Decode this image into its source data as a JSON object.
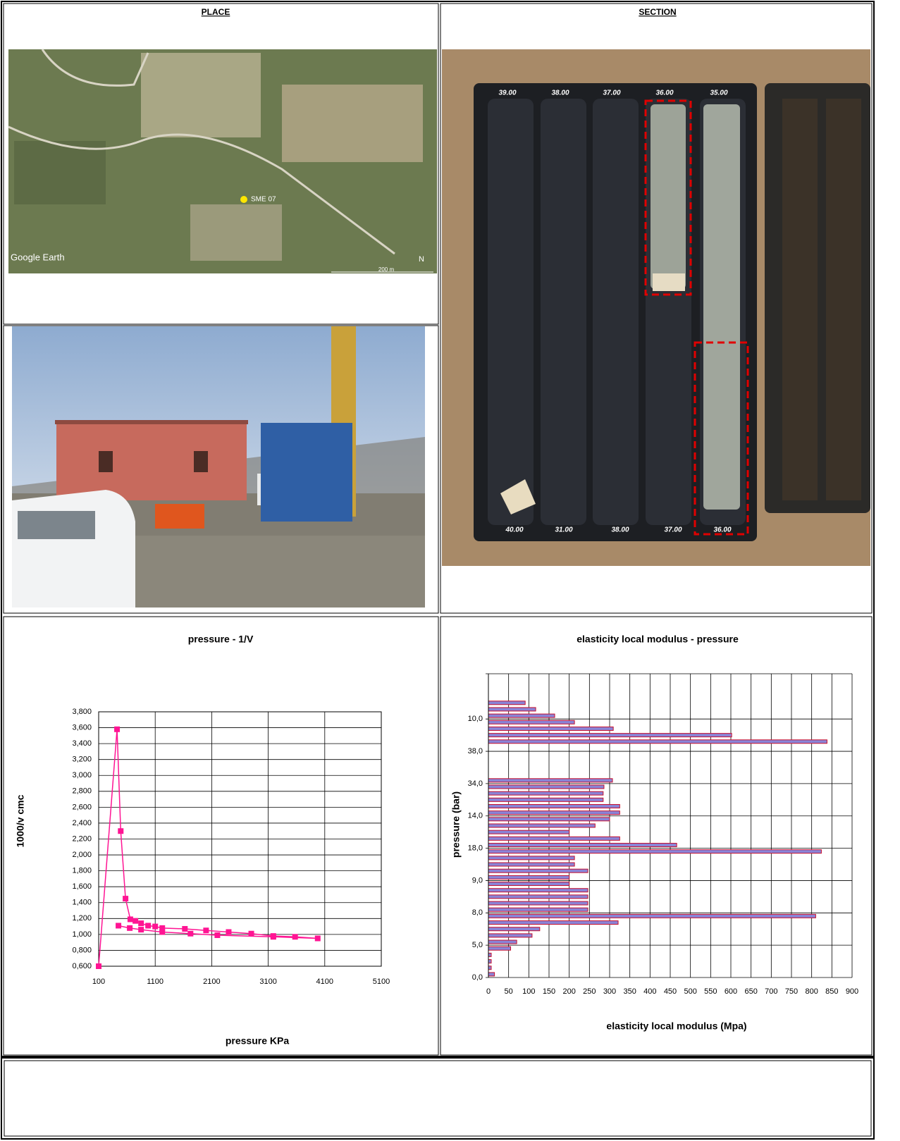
{
  "header": {
    "place": "PLACE",
    "section": "SECTION"
  },
  "map": {
    "brand": "Google Earth",
    "marker": "SME 07",
    "scale": "200 m",
    "north": "N"
  },
  "core_box": {
    "top_labels": [
      "39.00",
      "38.00",
      "37.00",
      "36.00",
      "35.00"
    ],
    "bottom_labels": [
      "40.00",
      "31.00",
      "38.00",
      "37.00",
      "36.00"
    ]
  },
  "chart_data": [
    {
      "type": "line",
      "title": "pressure - 1/V",
      "xlabel": "pressure KPa",
      "ylabel": "1000/v cmc",
      "color": "#ff1493",
      "marker": "square",
      "grid": true,
      "x": [
        100,
        425,
        490,
        575,
        660,
        750,
        850,
        975,
        1100,
        1225,
        1625,
        2000,
        2400,
        2800,
        3190,
        3575,
        3975,
        3190,
        2200,
        1725,
        1225,
        850,
        650,
        450
      ],
      "values": [
        0.6,
        3.58,
        2.3,
        1.45,
        1.19,
        1.17,
        1.14,
        1.11,
        1.1,
        1.08,
        1.07,
        1.05,
        1.03,
        1.01,
        0.98,
        0.97,
        0.95,
        0.97,
        0.99,
        1.01,
        1.03,
        1.06,
        1.08,
        1.11
      ],
      "xlim": [
        100,
        5100
      ],
      "xticks": [
        100,
        1100,
        2100,
        3100,
        4100,
        5100
      ],
      "ylim": [
        0.6,
        3.8
      ],
      "yticks": [
        {
          "value": 0.6,
          "label": "0,600"
        },
        {
          "value": 0.8,
          "label": "0,800"
        },
        {
          "value": 1.0,
          "label": "1,000"
        },
        {
          "value": 1.2,
          "label": "1,200"
        },
        {
          "value": 1.4,
          "label": "1,400"
        },
        {
          "value": 1.6,
          "label": "1,600"
        },
        {
          "value": 1.8,
          "label": "1,800"
        },
        {
          "value": 2.0,
          "label": "2,000"
        },
        {
          "value": 2.2,
          "label": "2,200"
        },
        {
          "value": 2.4,
          "label": "2,400"
        },
        {
          "value": 2.6,
          "label": "2,600"
        },
        {
          "value": 2.8,
          "label": "2,800"
        },
        {
          "value": 3.0,
          "label": "3,000"
        },
        {
          "value": 3.2,
          "label": "3,200"
        },
        {
          "value": 3.4,
          "label": "3,400"
        },
        {
          "value": 3.6,
          "label": "3,600"
        },
        {
          "value": 3.8,
          "label": "3,800"
        }
      ]
    },
    {
      "type": "barh",
      "title": "elasticity local modulus - pressure",
      "xlabel": "elasticity local modulus (Mpa)",
      "ylabel": "pressure (bar)",
      "color": "#8a84d6",
      "edge_color": "#c8102e",
      "grid": true,
      "categories": [
        "0,0",
        null,
        null,
        null,
        null,
        "5,0",
        null,
        null,
        null,
        null,
        "8,0",
        null,
        null,
        null,
        null,
        "9,0",
        null,
        null,
        null,
        null,
        "18,0",
        null,
        null,
        null,
        null,
        "14,0",
        null,
        null,
        null,
        null,
        "34,0",
        null,
        null,
        null,
        null,
        "38,0",
        null,
        null,
        null,
        null,
        "10,0",
        null,
        null,
        null,
        null,
        null,
        null
      ],
      "values": [
        15,
        7,
        7,
        7,
        55,
        70,
        108,
        127,
        321,
        810,
        246,
        246,
        246,
        246,
        200,
        200,
        246,
        213,
        213,
        824,
        466,
        325,
        200,
        264,
        300,
        325,
        325,
        284,
        284,
        286,
        307,
        null,
        null,
        null,
        null,
        null,
        838,
        602,
        309,
        213,
        164,
        117,
        91,
        null,
        null,
        null,
        null
      ],
      "xlim": [
        0,
        900
      ],
      "xticks": [
        0,
        50,
        100,
        150,
        200,
        250,
        300,
        350,
        400,
        450,
        500,
        550,
        600,
        650,
        700,
        750,
        800,
        850,
        900
      ]
    }
  ]
}
